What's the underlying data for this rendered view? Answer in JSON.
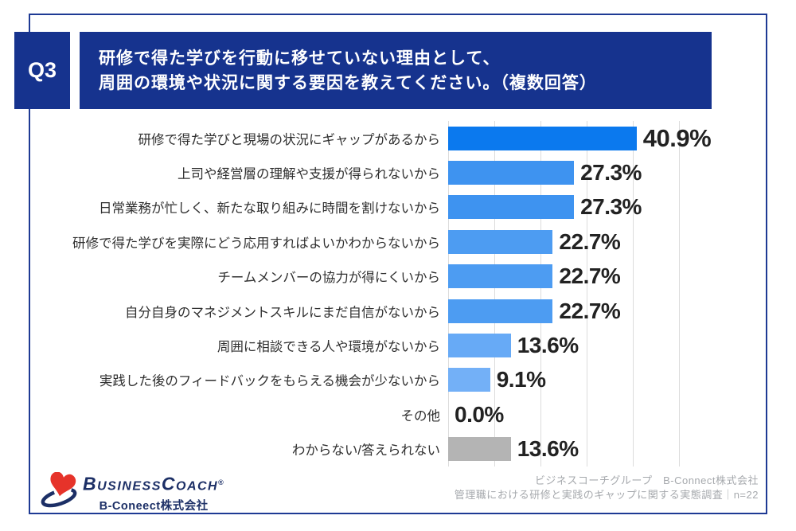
{
  "header": {
    "question_number": "Q3",
    "title_line1": "研修で得た学びを行動に移せていない理由として、",
    "title_line2": "周囲の環境や状況に関する要因を教えてください。（複数回答）"
  },
  "chart_data": {
    "type": "bar",
    "orientation": "horizontal",
    "unit": "%",
    "xlim": [
      0,
      50
    ],
    "gridline_interval_pct": 10,
    "grid": true,
    "legend": "none",
    "categories": [
      "研修で得た学びと現場の状況にギャップがあるから",
      "上司や経営層の理解や支援が得られないから",
      "日常業務が忙しく、新たな取り組みに時間を割けないから",
      "研修で得た学びを実際にどう応用すればよいかわからないから",
      "チームメンバーの協力が得にくいから",
      "自分自身のマネジメントスキルにまだ自信がないから",
      "周囲に相談できる人や環境がないから",
      "実践した後のフィードバックをもらえる機会が少ないから",
      "その他",
      "わからない/答えられない"
    ],
    "values": [
      40.9,
      27.3,
      27.3,
      22.7,
      22.7,
      22.7,
      13.6,
      9.1,
      0.0,
      13.6
    ],
    "value_labels": [
      "40.9%",
      "27.3%",
      "27.3%",
      "22.7%",
      "22.7%",
      "22.7%",
      "13.6%",
      "9.1%",
      "0.0%",
      "13.6%"
    ],
    "bar_colors": [
      "#0b79ee",
      "#3e93f0",
      "#3e93f0",
      "#4d9cf2",
      "#4d9cf2",
      "#4d9cf2",
      "#67aaf6",
      "#73b0f7",
      "#73b0f7",
      "#b4b4b4"
    ]
  },
  "footer": {
    "logo": {
      "icon": "heart-swoosh-icon",
      "parts": [
        "B",
        "USINESS",
        "C",
        "OACH"
      ],
      "registered_mark": "®",
      "company": "B-Coneect株式会社"
    },
    "credit_line1": "ビジネスコーチグループ　B-Connect株式会社",
    "credit_line2": "管理職における研修と実践のギャップに関する実態調査｜n=22"
  },
  "colors": {
    "navy": "#16338e",
    "frame_border": "#1e3a94",
    "grid_line": "#dcdcdc",
    "value_text": "#222222",
    "category_text": "#2f2f2f",
    "credit_text": "#a6a9ad",
    "logo_navy": "#1c2f66",
    "logo_red": "#e6332a",
    "background": "#ffffff"
  }
}
